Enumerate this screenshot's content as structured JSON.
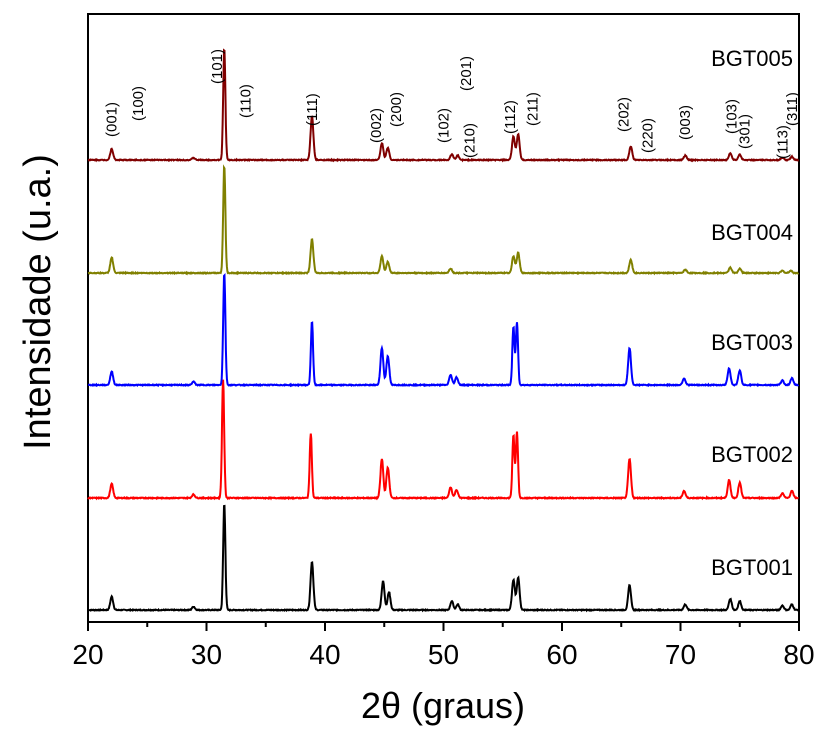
{
  "chart_data": {
    "type": "line",
    "xlabel": "2θ (graus)",
    "ylabel": "Intensidade (u.a.)",
    "xlim": [
      20,
      80
    ],
    "x_ticks": [
      20,
      30,
      40,
      50,
      60,
      70,
      80
    ],
    "y_ticks_shown": false,
    "grid": false,
    "legend": "inline labels at right of each trace",
    "series": [
      {
        "name": "BGT001",
        "color": "#000000",
        "peaks": [
          [
            22.0,
            0.12
          ],
          [
            28.9,
            0.03
          ],
          [
            31.5,
            0.95
          ],
          [
            38.9,
            0.43
          ],
          [
            44.9,
            0.26
          ],
          [
            45.4,
            0.16
          ],
          [
            50.7,
            0.08
          ],
          [
            51.2,
            0.05
          ],
          [
            55.9,
            0.27
          ],
          [
            56.3,
            0.29
          ],
          [
            65.7,
            0.22
          ],
          [
            70.4,
            0.05
          ],
          [
            74.2,
            0.1
          ],
          [
            75.0,
            0.08
          ],
          [
            78.6,
            0.04
          ],
          [
            79.4,
            0.05
          ]
        ]
      },
      {
        "name": "BGT002",
        "color": "#ff0000",
        "peaks": [
          [
            22.0,
            0.12
          ],
          [
            28.9,
            0.03
          ],
          [
            31.4,
            1.0
          ],
          [
            38.8,
            0.55
          ],
          [
            44.8,
            0.33
          ],
          [
            45.3,
            0.26
          ],
          [
            50.6,
            0.09
          ],
          [
            51.1,
            0.07
          ],
          [
            55.9,
            0.53
          ],
          [
            56.2,
            0.56
          ],
          [
            65.7,
            0.33
          ],
          [
            70.3,
            0.06
          ],
          [
            74.1,
            0.15
          ],
          [
            75.0,
            0.13
          ],
          [
            78.6,
            0.04
          ],
          [
            79.4,
            0.06
          ]
        ]
      },
      {
        "name": "BGT003",
        "color": "#0000ff",
        "peaks": [
          [
            22.0,
            0.12
          ],
          [
            28.9,
            0.03
          ],
          [
            31.5,
            1.0
          ],
          [
            38.9,
            0.57
          ],
          [
            44.8,
            0.33
          ],
          [
            45.3,
            0.26
          ],
          [
            50.6,
            0.09
          ],
          [
            51.1,
            0.07
          ],
          [
            55.9,
            0.52
          ],
          [
            56.2,
            0.56
          ],
          [
            65.7,
            0.33
          ],
          [
            70.3,
            0.06
          ],
          [
            74.1,
            0.15
          ],
          [
            75.0,
            0.13
          ],
          [
            78.6,
            0.04
          ],
          [
            79.4,
            0.06
          ]
        ]
      },
      {
        "name": "BGT004",
        "color": "#808000",
        "peaks": [
          [
            22.0,
            0.14
          ],
          [
            31.5,
            0.96
          ],
          [
            38.9,
            0.3
          ],
          [
            44.8,
            0.15
          ],
          [
            45.3,
            0.1
          ],
          [
            50.6,
            0.04
          ],
          [
            55.9,
            0.15
          ],
          [
            56.3,
            0.18
          ],
          [
            65.8,
            0.12
          ],
          [
            70.4,
            0.03
          ],
          [
            74.2,
            0.05
          ],
          [
            75.0,
            0.04
          ],
          [
            78.6,
            0.02
          ],
          [
            79.3,
            0.02
          ]
        ]
      },
      {
        "name": "BGT005",
        "color": "#800000",
        "peaks": [
          [
            22.0,
            0.1
          ],
          [
            28.9,
            0.02
          ],
          [
            31.5,
            1.0
          ],
          [
            38.9,
            0.39
          ],
          [
            44.8,
            0.15
          ],
          [
            45.3,
            0.11
          ],
          [
            50.7,
            0.05
          ],
          [
            51.2,
            0.04
          ],
          [
            55.9,
            0.21
          ],
          [
            56.3,
            0.23
          ],
          [
            65.8,
            0.12
          ],
          [
            70.4,
            0.04
          ],
          [
            74.2,
            0.06
          ],
          [
            75.0,
            0.05
          ],
          [
            78.6,
            0.02
          ],
          [
            79.4,
            0.03
          ]
        ]
      }
    ],
    "annotations": [
      {
        "text": "(001)",
        "x": 22.0
      },
      {
        "text": "(100)",
        "x": 24.2
      },
      {
        "text": "(101)",
        "x": 30.9
      },
      {
        "text": "(110)",
        "x": 33.3
      },
      {
        "text": "(111)",
        "x": 38.9
      },
      {
        "text": "(002)",
        "x": 44.3
      },
      {
        "text": "(200)",
        "x": 46.0
      },
      {
        "text": "(102)",
        "x": 50.0
      },
      {
        "text": "(201)",
        "x": 51.9
      },
      {
        "text": "(210)",
        "x": 52.2
      },
      {
        "text": "(112)",
        "x": 55.6
      },
      {
        "text": "(211)",
        "x": 57.5
      },
      {
        "text": "(202)",
        "x": 65.2
      },
      {
        "text": "(220)",
        "x": 67.2
      },
      {
        "text": "(003)",
        "x": 70.4
      },
      {
        "text": "(103)",
        "x": 74.3
      },
      {
        "text": "(301)",
        "x": 75.4
      },
      {
        "text": "(113)",
        "x": 78.6
      },
      {
        "text": "(311)",
        "x": 80.0
      }
    ]
  }
}
